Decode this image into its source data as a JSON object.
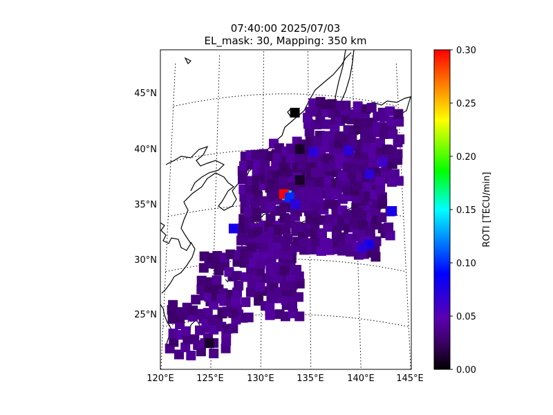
{
  "title": {
    "line1": "07:40:00 2025/07/03",
    "line2": "EL_mask: 30, Mapping: 350 km"
  },
  "chart_data": {
    "type": "heatmap",
    "projection": "map",
    "extent": {
      "lon": [
        120,
        145
      ],
      "lat": [
        20,
        49
      ]
    },
    "x_ticks": [
      "120°E",
      "125°E",
      "130°E",
      "135°E",
      "140°E",
      "145°E"
    ],
    "y_ticks": [
      "25°N",
      "30°N",
      "35°N",
      "40°N",
      "45°N"
    ],
    "grid": true,
    "colorbar": {
      "label": "ROTI [TECU/min]",
      "range": [
        0.0,
        0.3
      ],
      "ticks": [
        "0.00",
        "0.05",
        "0.10",
        "0.15",
        "0.20",
        "0.25",
        "0.30"
      ],
      "colors": [
        "#000000",
        "#3a0060",
        "#5a00b0",
        "#0000ff",
        "#00ffff",
        "#00ff00",
        "#ffff00",
        "#ff0000"
      ]
    },
    "typical_value": 0.035,
    "point_values": [
      {
        "lon": 132.6,
        "lat": 35.8,
        "value": 0.14
      },
      {
        "lon": 132.3,
        "lat": 35.9,
        "value": 0.3
      },
      {
        "lon": 132.9,
        "lat": 35.6,
        "value": 0.1
      },
      {
        "lon": 133.5,
        "lat": 35.0,
        "value": 0.07
      },
      {
        "lon": 141.2,
        "lat": 31.9,
        "value": 0.08
      },
      {
        "lon": 143.8,
        "lat": 35.3,
        "value": 0.08
      },
      {
        "lon": 127.0,
        "lat": 33.0,
        "value": 0.08
      },
      {
        "lon": 135.5,
        "lat": 39.8,
        "value": 0.07
      },
      {
        "lon": 139.3,
        "lat": 40.2,
        "value": 0.07
      },
      {
        "lon": 140.5,
        "lat": 31.5,
        "value": 0.07
      },
      {
        "lon": 141.5,
        "lat": 38.3,
        "value": 0.07
      },
      {
        "lon": 143.0,
        "lat": 39.6,
        "value": 0.06
      },
      {
        "lon": 134.0,
        "lat": 37.2,
        "value": 0.01
      },
      {
        "lon": 133.5,
        "lat": 43.3,
        "value": 0.0
      },
      {
        "lon": 134.0,
        "lat": 40.0,
        "value": 0.01
      },
      {
        "lon": 124.8,
        "lat": 22.8,
        "value": 0.01
      }
    ]
  }
}
